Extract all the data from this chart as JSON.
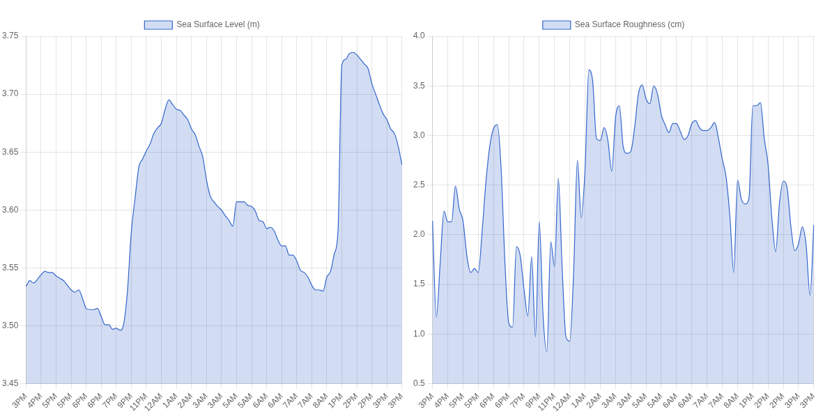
{
  "chart_data": [
    {
      "type": "area",
      "legend": "top",
      "grid": true,
      "marker": "none",
      "categories": [
        "3PM",
        null,
        null,
        null,
        "4PM",
        null,
        null,
        null,
        "5PM",
        null,
        null,
        null,
        "5PM",
        null,
        null,
        null,
        "6PM",
        null,
        null,
        null,
        "6PM",
        null,
        null,
        null,
        "7PM",
        null,
        null,
        null,
        "9PM",
        null,
        null,
        null,
        "11PM",
        null,
        null,
        null,
        "12AM",
        null,
        null,
        null,
        "1AM",
        null,
        null,
        null,
        "2AM",
        null,
        null,
        null,
        "3AM",
        null,
        null,
        null,
        "3AM",
        null,
        null,
        null,
        "5AM",
        null,
        null,
        null,
        "5AM",
        null,
        null,
        null,
        "6AM",
        null,
        null,
        null,
        "6AM",
        null,
        null,
        null,
        "7AM",
        null,
        null,
        null,
        "7AM",
        null,
        null,
        null,
        "8AM",
        null,
        null,
        null,
        "1PM",
        null,
        null,
        null,
        "2PM",
        null,
        null,
        null,
        "2PM",
        null,
        null,
        null,
        "3PM",
        null,
        null,
        null,
        "3PM"
      ],
      "ylim": [
        3.45,
        3.75
      ],
      "yticks": [
        3.45,
        {
          "value": 3.5,
          "label": "3.50"
        },
        3.55,
        {
          "value": 3.6,
          "label": "3.60"
        },
        3.65,
        {
          "value": 3.7,
          "label": "3.70"
        },
        3.75
      ],
      "series": [
        {
          "name": "Sea Surface Level (m)",
          "color": "#3366cc",
          "values": [
            3.534,
            3.539,
            3.537,
            3.54,
            3.544,
            3.547,
            3.546,
            3.546,
            3.543,
            3.541,
            3.539,
            3.535,
            3.531,
            3.529,
            3.531,
            3.524,
            3.515,
            3.514,
            3.514,
            3.515,
            3.508,
            3.501,
            3.501,
            3.497,
            3.498,
            3.496,
            3.502,
            3.531,
            3.581,
            3.61,
            3.637,
            3.644,
            3.651,
            3.657,
            3.666,
            3.671,
            3.675,
            3.687,
            3.695,
            3.691,
            3.687,
            3.686,
            3.682,
            3.678,
            3.67,
            3.665,
            3.655,
            3.646,
            3.626,
            3.612,
            3.607,
            3.603,
            3.6,
            3.595,
            3.591,
            3.586,
            3.607,
            3.607,
            3.607,
            3.604,
            3.603,
            3.599,
            3.591,
            3.59,
            3.584,
            3.585,
            3.582,
            3.574,
            3.569,
            3.569,
            3.561,
            3.561,
            3.556,
            3.548,
            3.546,
            3.542,
            3.535,
            3.531,
            3.531,
            3.53,
            3.542,
            3.547,
            3.562,
            3.583,
            3.725,
            3.73,
            3.735,
            3.736,
            3.734,
            3.73,
            3.726,
            3.722,
            3.709,
            3.7,
            3.691,
            3.683,
            3.678,
            3.67,
            3.666,
            3.655,
            3.639
          ]
        }
      ]
    },
    {
      "type": "area",
      "legend": "top",
      "grid": true,
      "marker": "none",
      "categories": [
        "3PM",
        null,
        null,
        null,
        "4PM",
        null,
        null,
        null,
        "5PM",
        null,
        null,
        null,
        "5PM",
        null,
        null,
        null,
        "6PM",
        null,
        null,
        null,
        "6PM",
        null,
        null,
        null,
        "7PM",
        null,
        null,
        null,
        "9PM",
        null,
        null,
        null,
        "11PM",
        null,
        null,
        null,
        "12AM",
        null,
        null,
        null,
        "1AM",
        null,
        null,
        null,
        "2AM",
        null,
        null,
        null,
        "3AM",
        null,
        null,
        null,
        "3AM",
        null,
        null,
        null,
        "5AM",
        null,
        null,
        null,
        "5AM",
        null,
        null,
        null,
        "6AM",
        null,
        null,
        null,
        "6AM",
        null,
        null,
        null,
        "7AM",
        null,
        null,
        null,
        "7AM",
        null,
        null,
        null,
        "8AM",
        null,
        null,
        null,
        "1PM",
        null,
        null,
        null,
        "2PM",
        null,
        null,
        null,
        "2PM",
        null,
        null,
        null,
        "3PM",
        null,
        null,
        null,
        "3PM"
      ],
      "ylim": [
        0.5,
        4.0
      ],
      "yticks": [
        0.5,
        {
          "value": 1,
          "label": "1.0"
        },
        1.5,
        {
          "value": 2,
          "label": "2.0"
        },
        2.5,
        {
          "value": 3,
          "label": "3.0"
        },
        3.5,
        {
          "value": 4,
          "label": "4.0"
        }
      ],
      "series": [
        {
          "name": "Sea Surface Roughness (cm)",
          "color": "#3366cc",
          "values": [
            2.14,
            1.17,
            1.71,
            2.24,
            2.13,
            2.13,
            2.49,
            2.26,
            2.14,
            1.79,
            1.62,
            1.66,
            1.62,
            2.03,
            2.53,
            2.89,
            3.07,
            3.11,
            2.66,
            1.71,
            1.11,
            1.07,
            1.88,
            1.79,
            1.45,
            1.18,
            1.78,
            0.97,
            2.13,
            1.18,
            0.82,
            1.93,
            1.68,
            2.57,
            1.66,
            0.97,
            0.93,
            1.61,
            2.75,
            2.17,
            2.66,
            3.66,
            3.55,
            2.97,
            2.95,
            3.08,
            2.95,
            2.64,
            3.18,
            3.3,
            2.89,
            2.82,
            2.84,
            3.08,
            3.42,
            3.51,
            3.37,
            3.32,
            3.5,
            3.42,
            3.21,
            3.11,
            3.03,
            3.12,
            3.12,
            3.04,
            2.96,
            3.0,
            3.12,
            3.15,
            3.08,
            3.05,
            3.05,
            3.08,
            3.13,
            2.97,
            2.76,
            2.58,
            2.18,
            1.62,
            2.55,
            2.36,
            2.31,
            2.37,
            3.3,
            3.3,
            3.33,
            2.97,
            2.71,
            2.17,
            1.83,
            2.32,
            2.54,
            2.47,
            2.08,
            1.84,
            1.91,
            2.08,
            1.89,
            1.39,
            2.1
          ]
        }
      ]
    }
  ]
}
